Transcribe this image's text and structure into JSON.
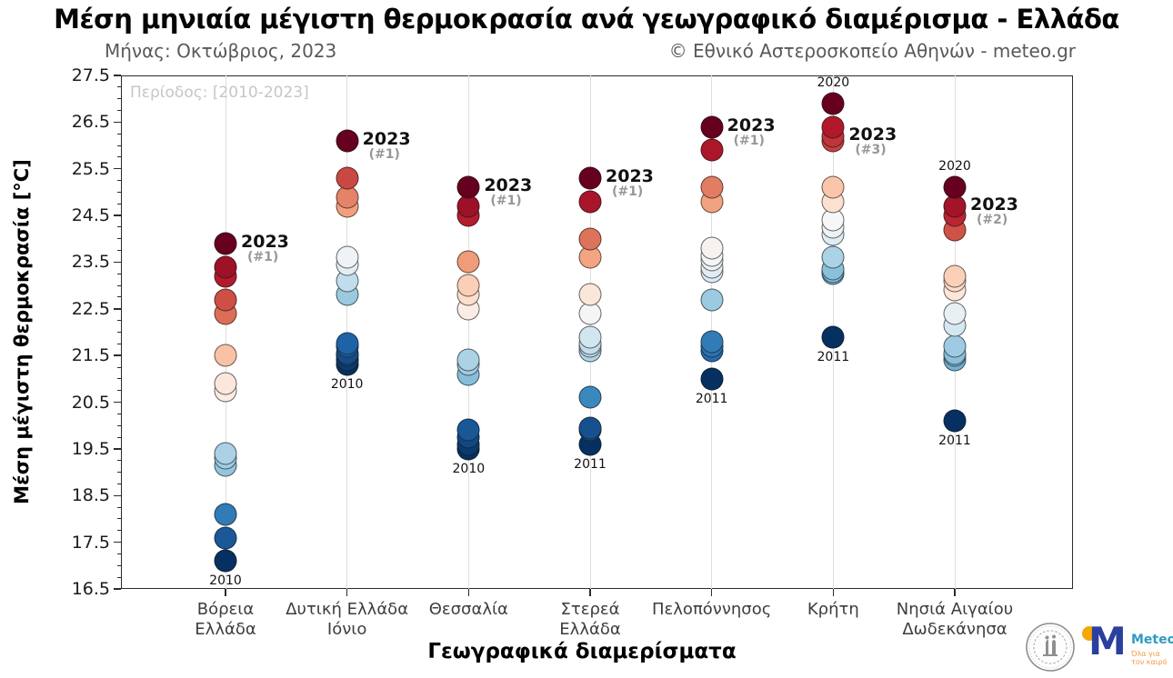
{
  "header": {
    "title": "Μέση μηνιαία μέγιστη θερμοκρασία ανά γεωγραφικό διαμέρισμα - Ελλάδα",
    "subtitle_left": "Μήνας: Οκτώβριος, 2023",
    "subtitle_right": "© Εθνικό Αστεροσκοπείο Αθηνών - meteo.gr"
  },
  "plot_note": "Περίοδος: [2010-2023]",
  "colors": {
    "title": "#050505",
    "subtitle": "#595959",
    "note": "#c6c6c6",
    "grid": "#dedede",
    "axis": "#2b2b2b",
    "annotation_rank_gray": "#979797",
    "meteo_blue": "#2b3f9e",
    "meteo_teal": "#2e9bc0",
    "meteo_orange": "#f09a3e",
    "meteo_yellow": "#f6a800",
    "seal_gray": "#8f8f8f"
  },
  "logos": {
    "seal_name": "national-observatory-of-athens-seal",
    "meteo_text": "Meteo",
    "meteo_tagline_line1": "Όλα για",
    "meteo_tagline_line2": "τον καιρό"
  },
  "chart_data": {
    "type": "scatter",
    "title": "Μέση μηνιαία μέγιστη θερμοκρασία ανά γεωγραφικό διαμέρισμα - Ελλάδα",
    "xlabel": "Γεωγραφικά διαμερίσματα",
    "ylabel": "Μέση μέγιστη θερμοκρασία [°C]",
    "ylim": [
      16.5,
      27.5
    ],
    "yticks": [
      16.5,
      17.5,
      18.5,
      19.5,
      20.5,
      21.5,
      22.5,
      23.5,
      24.5,
      25.5,
      26.5,
      27.5
    ],
    "grid": "vertical-only",
    "legend": "none",
    "palette_cool_to_warm": [
      "#053061",
      "#2166ac",
      "#4393c3",
      "#92c5de",
      "#d1e5f0",
      "#f7f7f7",
      "#fddbc7",
      "#f4a582",
      "#d6604d",
      "#b2182b",
      "#67001f"
    ],
    "regions": [
      {
        "label_lines": [
          "Βόρεια",
          "Ελλάδα"
        ],
        "values": [
          23.9,
          23.4,
          23.2,
          22.7,
          22.4,
          21.5,
          20.9,
          20.75,
          19.4,
          19.3,
          19.15,
          18.1,
          17.6,
          17.1
        ],
        "label2023": {
          "text": "2023",
          "rank": "(#1)",
          "value": 23.9
        },
        "year_marks": [
          {
            "text": "2010",
            "value": 17.1,
            "side": "below"
          }
        ]
      },
      {
        "label_lines": [
          "Δυτική Ελλάδα",
          "Ιόνιο"
        ],
        "values": [
          26.1,
          25.3,
          24.9,
          24.7,
          23.6,
          23.45,
          23.1,
          22.8,
          21.75,
          21.7,
          21.55,
          21.5,
          21.4,
          21.3
        ],
        "label2023": {
          "text": "2023",
          "rank": "(#1)",
          "value": 26.1
        },
        "year_marks": [
          {
            "text": "2010",
            "value": 21.3,
            "side": "below"
          }
        ]
      },
      {
        "label_lines": [
          "Θεσσαλία"
        ],
        "values": [
          25.1,
          24.7,
          24.5,
          23.5,
          23.0,
          22.8,
          22.5,
          21.4,
          21.3,
          21.1,
          19.9,
          19.75,
          19.6,
          19.5
        ],
        "label2023": {
          "text": "2023",
          "rank": "(#1)",
          "value": 25.1
        },
        "year_marks": [
          {
            "text": "2010",
            "value": 19.5,
            "side": "below"
          }
        ]
      },
      {
        "label_lines": [
          "Στερεά",
          "Ελλάδα"
        ],
        "values": [
          25.3,
          24.8,
          24.0,
          23.6,
          22.8,
          22.4,
          21.9,
          21.75,
          21.7,
          21.6,
          20.6,
          19.95,
          19.9,
          19.6
        ],
        "label2023": {
          "text": "2023",
          "rank": "(#1)",
          "value": 25.3
        },
        "year_marks": [
          {
            "text": "2011",
            "value": 19.6,
            "side": "below"
          }
        ]
      },
      {
        "label_lines": [
          "Πελοπόννησος"
        ],
        "values": [
          26.4,
          25.9,
          25.1,
          24.8,
          23.8,
          23.65,
          23.55,
          23.4,
          23.3,
          22.7,
          21.8,
          21.7,
          21.6,
          21.0
        ],
        "label2023": {
          "text": "2023",
          "rank": "(#1)",
          "value": 26.4
        },
        "year_marks": [
          {
            "text": "2011",
            "value": 21.0,
            "side": "below"
          }
        ]
      },
      {
        "label_lines": [
          "Κρήτη"
        ],
        "values": [
          26.9,
          26.4,
          26.2,
          26.1,
          25.1,
          24.8,
          24.4,
          24.25,
          24.1,
          23.6,
          23.35,
          23.3,
          23.25,
          21.9
        ],
        "label2023": {
          "text": "2023",
          "rank": "(#3)",
          "value": 26.2
        },
        "year_marks": [
          {
            "text": "2020",
            "value": 26.9,
            "side": "above"
          },
          {
            "text": "2011",
            "value": 21.9,
            "side": "below"
          }
        ]
      },
      {
        "label_lines": [
          "Νησιά Αιγαίου",
          "Δωδεκάνησα"
        ],
        "values": [
          25.1,
          24.7,
          24.5,
          24.2,
          23.2,
          23.1,
          22.9,
          22.4,
          22.15,
          21.7,
          21.55,
          21.5,
          21.4,
          20.1
        ],
        "label2023": {
          "text": "2023",
          "rank": "(#2)",
          "value": 24.7
        },
        "year_marks": [
          {
            "text": "2020",
            "value": 25.1,
            "side": "above"
          },
          {
            "text": "2011",
            "value": 20.1,
            "side": "below"
          }
        ]
      }
    ]
  }
}
